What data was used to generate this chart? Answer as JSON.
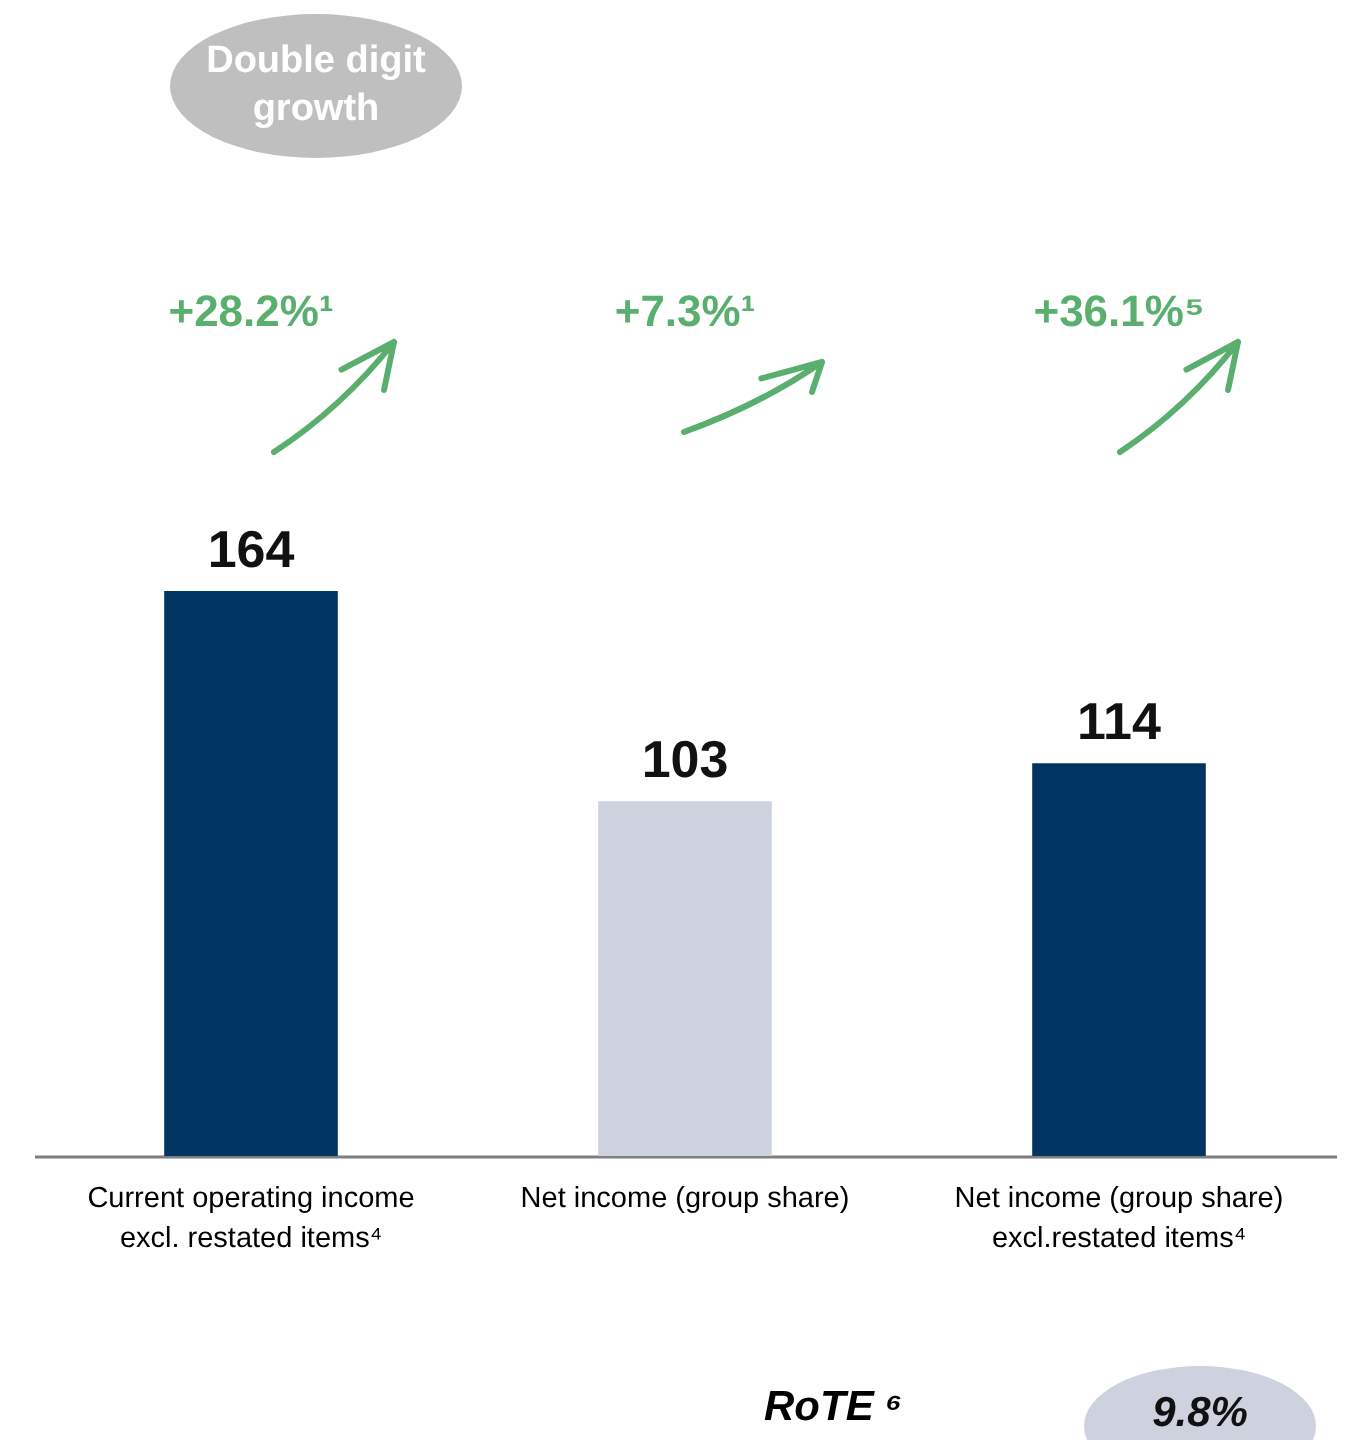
{
  "chart_data": {
    "type": "bar",
    "categories": [
      "Current operating income\nexcl. restated items⁴",
      "Net income (group share)",
      "Net income (group share)\nexcl.restated items⁴"
    ],
    "values": [
      164,
      103,
      114
    ],
    "colors": [
      "#003461",
      "#cdd2de",
      "#003461"
    ],
    "data_labels": true,
    "annotations": [
      "Double digit growth",
      "+28.2%¹",
      "+7.3%¹",
      "+36.1%⁵",
      "RoTE ⁶",
      "9.8%"
    ]
  }
}
